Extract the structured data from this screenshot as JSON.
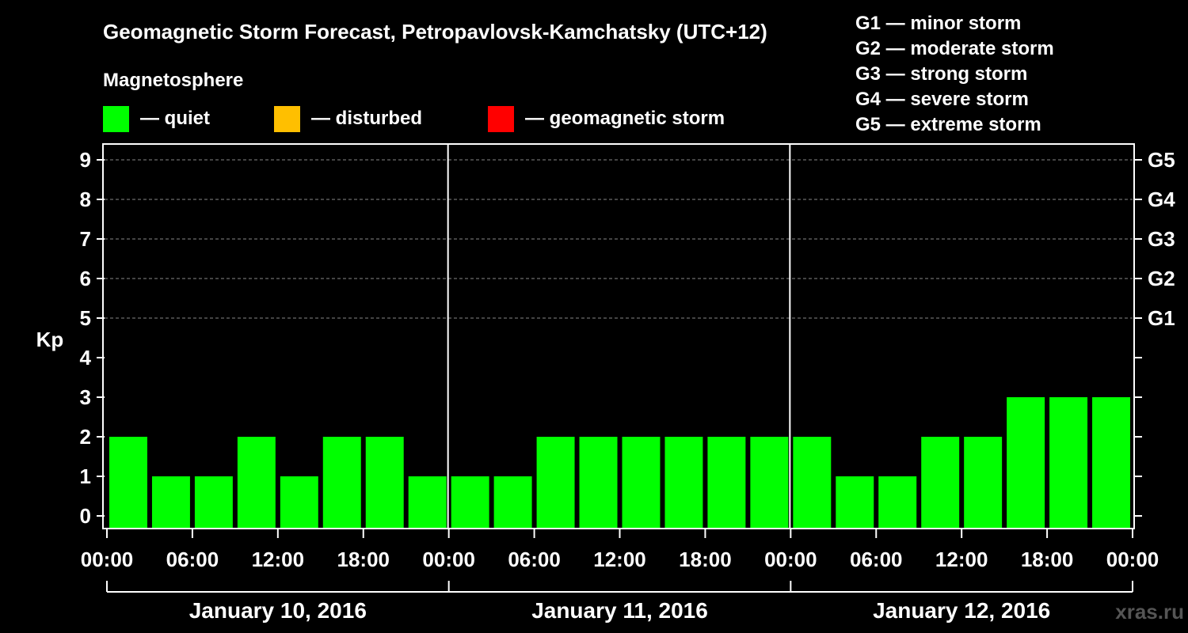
{
  "chart_data": {
    "type": "bar",
    "title": "Geomagnetic Storm Forecast, Petropavlovsk-Kamchatsky (UTC+12)",
    "ylabel": "Kp",
    "ylim": [
      0,
      9
    ],
    "yticks": [
      "0",
      "1",
      "2",
      "3",
      "4",
      "5",
      "6",
      "7",
      "8",
      "9"
    ],
    "right_axis_labels": [
      {
        "kp": 5,
        "label": "G1"
      },
      {
        "kp": 6,
        "label": "G2"
      },
      {
        "kp": 7,
        "label": "G3"
      },
      {
        "kp": 8,
        "label": "G4"
      },
      {
        "kp": 9,
        "label": "G5"
      }
    ],
    "storm_scale": [
      "G1 — minor storm",
      "G2 — moderate storm",
      "G3 — strong storm",
      "G4 — severe storm",
      "G5 — extreme storm"
    ],
    "legend_title": "Magnetosphere",
    "legend": [
      {
        "label": "— quiet",
        "color": "#00ff00"
      },
      {
        "label": "— disturbed",
        "color": "#ffbf00"
      },
      {
        "label": "— geomagnetic storm",
        "color": "#ff0000"
      }
    ],
    "x_tick_labels": [
      "00:00",
      "06:00",
      "12:00",
      "18:00",
      "00:00",
      "06:00",
      "12:00",
      "18:00",
      "00:00",
      "06:00",
      "12:00",
      "18:00",
      "00:00"
    ],
    "days": [
      "January 10, 2016",
      "January 11, 2016",
      "January 12, 2016"
    ],
    "values": [
      2,
      1,
      1,
      2,
      1,
      2,
      2,
      1,
      1,
      1,
      2,
      2,
      2,
      2,
      2,
      2,
      2,
      1,
      1,
      2,
      2,
      3,
      3,
      3
    ],
    "bar_color": "#00ff00",
    "grid": true
  },
  "watermark": "xras.ru"
}
